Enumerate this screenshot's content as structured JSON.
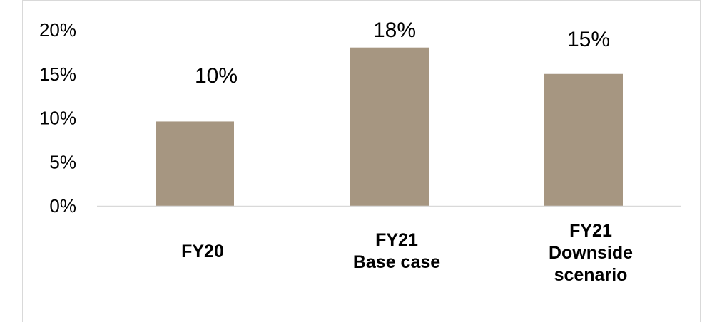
{
  "chart_data": {
    "type": "bar",
    "categories": [
      [
        "FY20"
      ],
      [
        "FY21",
        "Base case"
      ],
      [
        "FY21",
        "Downside",
        "scenario"
      ]
    ],
    "values": [
      9.6,
      18.0,
      15.0
    ],
    "data_labels": [
      "10%",
      "18%",
      "15%"
    ],
    "title": "",
    "xlabel": "",
    "ylabel": "",
    "ylim": [
      0,
      20
    ],
    "yticks": [
      0,
      5,
      10,
      15,
      20
    ],
    "ytick_labels": [
      "0%",
      "5%",
      "10%",
      "15%",
      "20%"
    ],
    "grid": false,
    "legend": "none",
    "bar_color": "#a69681",
    "axis_color": "#d9d9d9"
  }
}
